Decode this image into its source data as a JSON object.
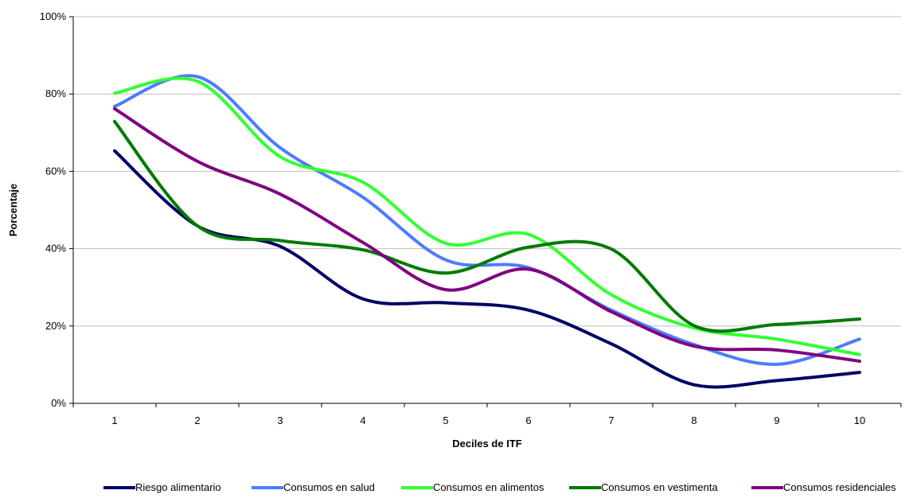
{
  "chart_data": {
    "type": "line",
    "title": "",
    "xlabel": "Deciles de ITF",
    "ylabel": "Porcentaje",
    "categories": [
      "1",
      "2",
      "3",
      "4",
      "5",
      "6",
      "7",
      "8",
      "9",
      "10"
    ],
    "ylim": [
      0,
      100
    ],
    "yticks": [
      0,
      20,
      40,
      60,
      80,
      100
    ],
    "ytick_labels": [
      "0%",
      "20%",
      "40%",
      "60%",
      "80%",
      "100%"
    ],
    "grid": true,
    "legend_position": "bottom",
    "series": [
      {
        "name": "Riesgo alimentario",
        "color": "#000066",
        "values": [
          65.3,
          45.9,
          40.6,
          27.0,
          26.0,
          24.1,
          15.4,
          4.8,
          5.9,
          8.0
        ]
      },
      {
        "name": "Consumos en salud",
        "color": "#4D7CFF",
        "values": [
          76.8,
          84.5,
          66.1,
          53.3,
          37.1,
          35.1,
          24.1,
          15.2,
          10.1,
          16.6
        ]
      },
      {
        "name": "Consumos en alimentos",
        "color": "#33FF33",
        "values": [
          80.2,
          83.3,
          63.8,
          57.2,
          41.4,
          43.7,
          28.1,
          19.5,
          16.6,
          12.6
        ]
      },
      {
        "name": "Consumos en vestimenta",
        "color": "#007A00",
        "values": [
          72.9,
          45.9,
          42.1,
          39.7,
          33.7,
          40.4,
          39.9,
          20.1,
          20.4,
          21.8
        ]
      },
      {
        "name": "Consumos residenciales",
        "color": "#800080",
        "values": [
          76.2,
          62.6,
          54.1,
          41.6,
          29.4,
          34.7,
          23.7,
          14.8,
          13.8,
          10.9
        ]
      }
    ]
  }
}
